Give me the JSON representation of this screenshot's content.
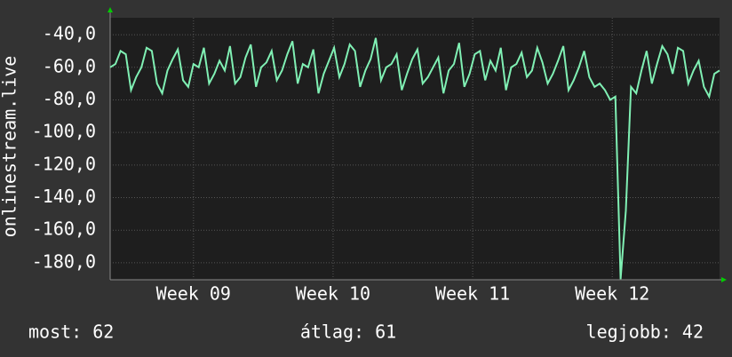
{
  "chart_data": {
    "type": "line",
    "y_label": "onlinestream.live",
    "x": [
      0,
      1,
      2,
      3,
      4,
      5,
      6,
      7,
      8,
      9,
      10,
      11,
      12,
      13,
      14,
      15,
      16,
      17,
      18,
      19,
      20,
      21,
      22,
      23,
      24,
      25,
      26,
      27,
      28,
      29,
      30,
      31,
      32,
      33,
      34,
      35,
      36,
      37,
      38,
      39,
      40,
      41,
      42,
      43,
      44,
      45,
      46,
      47,
      48,
      49,
      50,
      51,
      52,
      53,
      54,
      55,
      56,
      57,
      58,
      59,
      60,
      61,
      62,
      63,
      64,
      65,
      66,
      67,
      68,
      69,
      70,
      71,
      72,
      73,
      74,
      75,
      76,
      77,
      78,
      79,
      80,
      81,
      82,
      83,
      84,
      85,
      86,
      87,
      88,
      89,
      90,
      91,
      92,
      93,
      94,
      95,
      96,
      97,
      98,
      99,
      100,
      101,
      102,
      103,
      104,
      105,
      106,
      107,
      108,
      109,
      110,
      111,
      112,
      113,
      114,
      115,
      116,
      117
    ],
    "series": [
      {
        "color": "#80f0b4",
        "values": [
          -60,
          -58,
          -50,
          -52,
          -74,
          -66,
          -60,
          -48,
          -50,
          -70,
          -76,
          -62,
          -55,
          -49,
          -68,
          -72,
          -58,
          -60,
          -48,
          -70,
          -64,
          -56,
          -62,
          -47,
          -70,
          -66,
          -54,
          -46,
          -72,
          -60,
          -57,
          -50,
          -68,
          -62,
          -52,
          -44,
          -70,
          -58,
          -60,
          -49,
          -76,
          -64,
          -56,
          -48,
          -66,
          -58,
          -46,
          -50,
          -72,
          -62,
          -55,
          -42,
          -68,
          -60,
          -58,
          -52,
          -74,
          -64,
          -55,
          -49,
          -70,
          -66,
          -60,
          -54,
          -76,
          -62,
          -58,
          -45,
          -72,
          -64,
          -52,
          -50,
          -68,
          -56,
          -62,
          -48,
          -74,
          -60,
          -58,
          -51,
          -66,
          -62,
          -48,
          -57,
          -70,
          -64,
          -56,
          -47,
          -74,
          -68,
          -60,
          -50,
          -66,
          -72,
          -70,
          -74,
          -80,
          -78,
          -190,
          -148,
          -72,
          -76,
          -62,
          -50,
          -70,
          -58,
          -47,
          -52,
          -64,
          -48,
          -50,
          -70,
          -62,
          -56,
          -72,
          -78,
          -64,
          -62
        ]
      }
    ],
    "xlim": [
      0,
      117
    ],
    "xticks": [
      {
        "value": 16,
        "label": "Week 09"
      },
      {
        "value": 42.8,
        "label": "Week 10"
      },
      {
        "value": 69.6,
        "label": "Week 11"
      },
      {
        "value": 96.4,
        "label": "Week 12"
      }
    ],
    "ylim": [
      -190.4,
      -29.6
    ],
    "yticks": [
      {
        "value": -40,
        "label": "-40,0"
      },
      {
        "value": -60,
        "label": "-60,0"
      },
      {
        "value": -80,
        "label": "-80,0"
      },
      {
        "value": -100,
        "label": "-100,0"
      },
      {
        "value": -120,
        "label": "-120,0"
      },
      {
        "value": -140,
        "label": "-140,0"
      },
      {
        "value": -160,
        "label": "-160,0"
      },
      {
        "value": -180,
        "label": "-180,0"
      }
    ],
    "grid": true,
    "stats": [
      "most: 62",
      "átlag: 61",
      "legjobb: 42"
    ]
  }
}
